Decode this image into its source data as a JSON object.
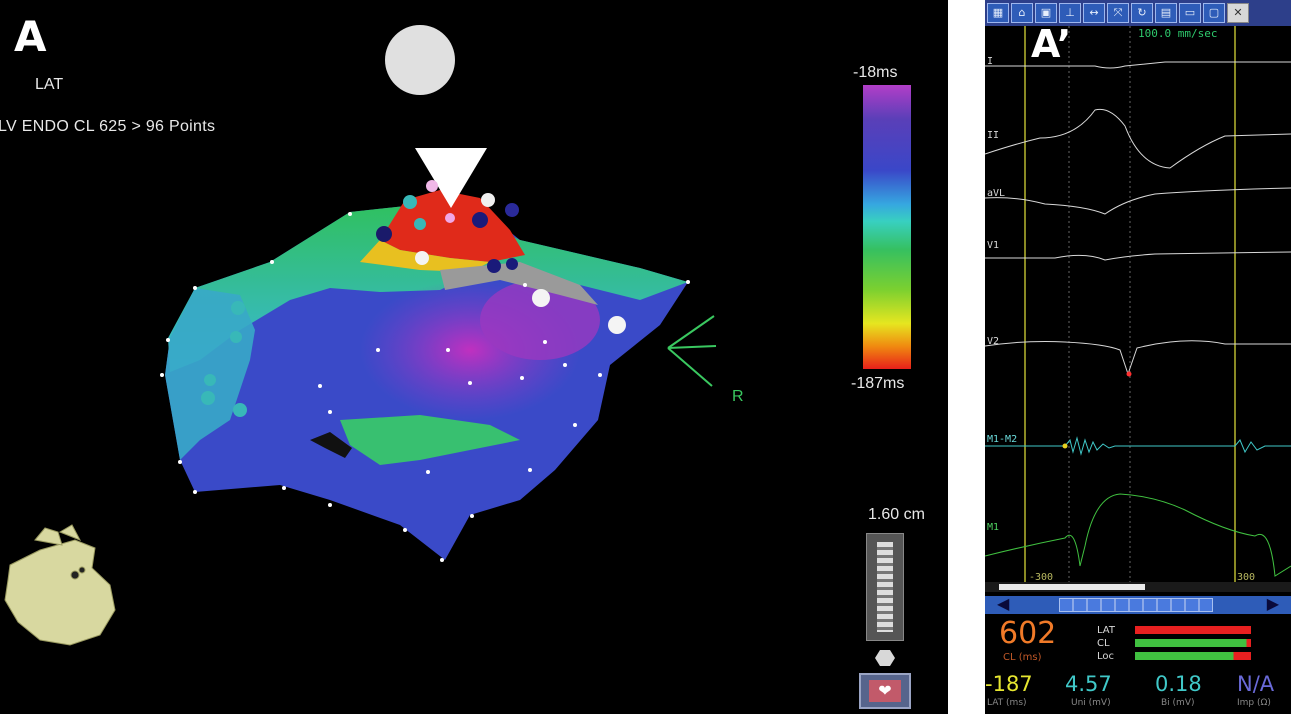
{
  "panel_a": {
    "letter": "A",
    "map_mode": "LAT",
    "map_info": "LV ENDO CL 625 > 96 Points",
    "orientation_label": "R",
    "scale": {
      "max": "-18ms",
      "min": "-187ms"
    },
    "distance_scale": "1.60 cm",
    "icons": [
      "heart-model-icon",
      "heart-button-icon",
      "zoom-slider"
    ]
  },
  "panel_b": {
    "letter": "A’",
    "toolbar_icons": [
      "layout-icon",
      "select-icon",
      "save-icon",
      "measure-icon",
      "expand-icon",
      "zoom-icon",
      "refresh-icon",
      "grid-icon",
      "note-icon",
      "monitor-icon",
      "close-icon"
    ],
    "sweep_speed": "100.0 mm/sec",
    "traces": [
      {
        "label": "I",
        "color": "#d8d8d8"
      },
      {
        "label": "II",
        "color": "#d8d8d8"
      },
      {
        "label": "aVL",
        "color": "#d8d8d8"
      },
      {
        "label": "V1",
        "color": "#d8d8d8"
      },
      {
        "label": "V2",
        "color": "#d8d8d8"
      },
      {
        "label": "M1-M2",
        "color": "#6ad8d8"
      },
      {
        "label": "M1",
        "color": "#4ed060"
      }
    ],
    "window_left": "-300",
    "window_right": "300",
    "cycle_length": {
      "value": "602",
      "label": "CL (ms)"
    },
    "bars": [
      {
        "label": "LAT",
        "color": "#e82020",
        "fill": 1.0
      },
      {
        "label": "CL",
        "color": "#40c040",
        "fill": 0.96
      },
      {
        "label": "Loc",
        "color": "#40c040",
        "fill": 0.85
      }
    ],
    "metrics": [
      {
        "value": "-187",
        "label": "LAT (ms)",
        "color": "#e6e630"
      },
      {
        "value": "4.57",
        "label": "Uni (mV)",
        "color": "#40c8c8"
      },
      {
        "value": "0.18",
        "label": "Bi (mV)",
        "color": "#40c8c8"
      },
      {
        "value": "N/A",
        "label": "Imp (Ω)",
        "color": "#6a6ad8"
      }
    ]
  }
}
